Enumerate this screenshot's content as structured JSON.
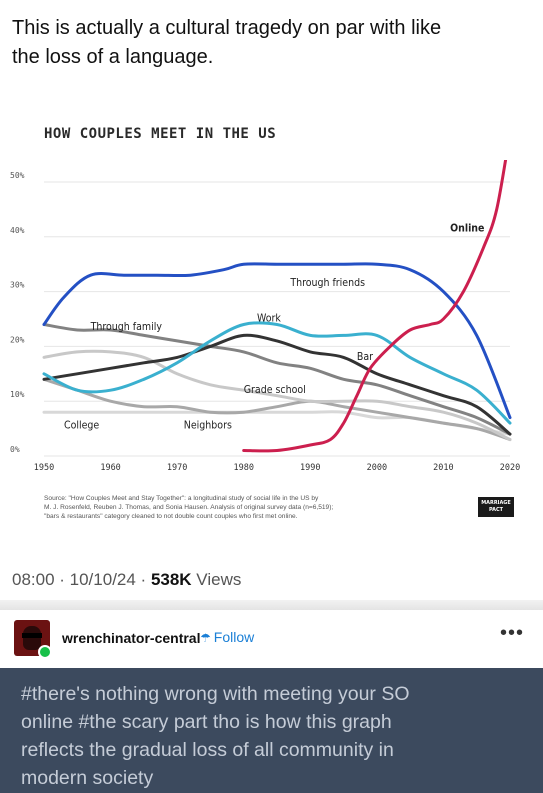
{
  "post": {
    "text_line1": "This is actually a cultural tragedy on par with like",
    "text_line2": "the loss of a language.",
    "timestamp": "08:00 · 10/10/24 · ",
    "views_count": "538K",
    "views_label": " Views"
  },
  "chart_data": {
    "type": "line",
    "title": "HOW COUPLES MEET IN THE US",
    "xlim": [
      1950,
      2020
    ],
    "ylim": [
      0,
      50
    ],
    "x_ticks": [
      "1950",
      "1960",
      "1970",
      "1980",
      "1990",
      "2000",
      "2010",
      "2020"
    ],
    "y_ticks": [
      "0%",
      "10%",
      "20%",
      "30%",
      "40%",
      "50%"
    ],
    "grid": true,
    "series": [
      {
        "name": "Through friends",
        "color": "#2450c4",
        "x": [
          1950,
          1953,
          1957,
          1962,
          1967,
          1972,
          1977,
          1980,
          1985,
          1990,
          1995,
          2000,
          2005,
          2010,
          2015,
          2020
        ],
        "y": [
          24,
          29,
          33,
          33,
          33,
          33,
          34,
          35,
          35,
          35,
          35,
          35,
          34,
          30,
          22,
          7
        ]
      },
      {
        "name": "Online",
        "color": "#cc1f4e",
        "x": [
          1980,
          1985,
          1990,
          1993,
          1995,
          1997,
          1999,
          2002,
          2005,
          2008,
          2010,
          2013,
          2016,
          2018,
          2020
        ],
        "y": [
          1,
          1,
          2,
          3,
          6,
          11,
          16,
          20,
          23,
          24,
          25,
          30,
          38,
          45,
          59
        ]
      },
      {
        "name": "Work",
        "color": "#3ab0cf",
        "x": [
          1950,
          1955,
          1960,
          1965,
          1970,
          1975,
          1980,
          1985,
          1990,
          1995,
          2000,
          2005,
          2010,
          2015,
          2020
        ],
        "y": [
          15,
          12,
          12,
          14,
          17,
          21,
          24,
          24,
          22,
          22,
          22,
          18,
          15,
          12,
          6
        ]
      },
      {
        "name": "Through family",
        "color": "#828282",
        "x": [
          1950,
          1955,
          1960,
          1965,
          1970,
          1975,
          1980,
          1985,
          1990,
          1995,
          2000,
          2005,
          2010,
          2015,
          2020
        ],
        "y": [
          24,
          23,
          23,
          22,
          21,
          20,
          19,
          17,
          16,
          14,
          13,
          11,
          9,
          7,
          4
        ]
      },
      {
        "name": "Bar",
        "color": "#333333",
        "x": [
          1950,
          1955,
          1960,
          1965,
          1970,
          1975,
          1980,
          1985,
          1990,
          1995,
          2000,
          2005,
          2010,
          2015,
          2020
        ],
        "y": [
          14,
          15,
          16,
          17,
          18,
          20,
          22,
          21,
          19,
          18,
          15,
          13,
          11,
          9,
          4
        ]
      },
      {
        "name": "Grade school",
        "color": "#c8c8c8",
        "x": [
          1950,
          1955,
          1960,
          1965,
          1970,
          1975,
          1980,
          1985,
          1990,
          1995,
          2000,
          2005,
          2010,
          2015,
          2020
        ],
        "y": [
          18,
          19,
          19,
          18,
          15,
          13,
          12,
          11,
          10,
          10,
          10,
          9,
          8,
          6,
          3
        ]
      },
      {
        "name": "Neighbors",
        "color": "#a8a8a8",
        "x": [
          1950,
          1955,
          1960,
          1965,
          1970,
          1975,
          1980,
          1985,
          1990,
          1995,
          2000,
          2005,
          2010,
          2015,
          2020
        ],
        "y": [
          14,
          12,
          10,
          9,
          9,
          8,
          8,
          9,
          10,
          9,
          8,
          7,
          6,
          5,
          3
        ]
      },
      {
        "name": "College",
        "color": "#d8d8d8",
        "x": [
          1950,
          1955,
          1960,
          1965,
          1970,
          1975,
          1980,
          1985,
          1990,
          1995,
          2000,
          2005,
          2010,
          2015,
          2020
        ],
        "y": [
          8,
          8,
          8,
          8,
          8,
          8,
          8,
          8,
          8,
          8,
          7,
          7,
          6,
          5,
          4
        ]
      }
    ],
    "labels": [
      {
        "text": "Online",
        "x": 2011,
        "y": 41
      },
      {
        "text": "Through friends",
        "x": 1987,
        "y": 31
      },
      {
        "text": "Work",
        "x": 1982,
        "y": 24.5
      },
      {
        "text": "Through family",
        "x": 1957,
        "y": 23
      },
      {
        "text": "Bar",
        "x": 1997,
        "y": 17.5
      },
      {
        "text": "Grade school",
        "x": 1980,
        "y": 11.5
      },
      {
        "text": "College",
        "x": 1953,
        "y": 5
      },
      {
        "text": "Neighbors",
        "x": 1971,
        "y": 5
      }
    ]
  },
  "source": {
    "line1": "Source: \"How Couples Meet and Stay Together\": a longitudinal study of social life in the US by",
    "line2": "M. J. Rosenfeld, Reuben J. Thomas, and Sonia Hausen. Analysis of original survey data (n=6,519);",
    "line3": "\"bars & restaurants\" category cleaned to not double count couples who first met online.",
    "logo_line1": "MARRIAGE",
    "logo_line2": "PACT"
  },
  "reblog": {
    "username": "wrenchinator-central",
    "follow_label": "Follow",
    "more_label": "•••",
    "tag_line1": "#there's nothing wrong with meeting your SO",
    "tag_line2": "online  #the scary part tho is how this graph",
    "tag_line3": "reflects the gradual loss of all community in",
    "tag_line4": "modern society"
  }
}
